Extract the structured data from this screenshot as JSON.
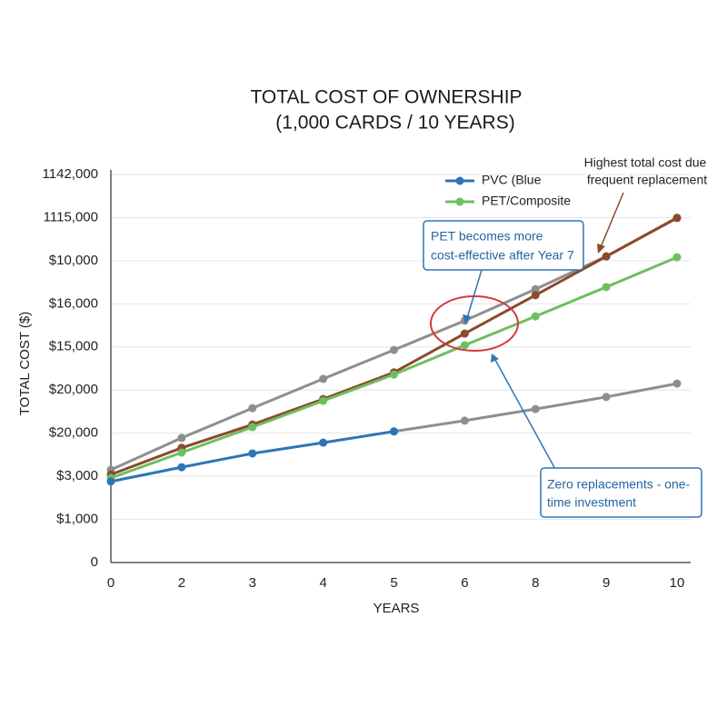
{
  "chart_data": {
    "type": "line",
    "title": [
      "TOTAL COST OF OWNERSHIP",
      "(1,000 CARDS / 10 YEARS)"
    ],
    "x_label": "YEARS",
    "y_label": "TOTAL COST ($)",
    "categories": [
      "0",
      "2",
      "3",
      "4",
      "5",
      "6",
      "8",
      "9",
      "10"
    ],
    "ylim": [
      0,
      9
    ],
    "yticks": [
      0,
      {
        "value": 1,
        "label": "$1,000"
      },
      {
        "value": 2,
        "label": "$3,000"
      },
      {
        "value": 3,
        "label": "$20,000"
      },
      {
        "value": 4,
        "label": "$20,000"
      },
      {
        "value": 5,
        "label": "$15,000"
      },
      {
        "value": 6,
        "label": "$16,000"
      },
      {
        "value": 7,
        "label": "$10,000"
      },
      {
        "value": 8,
        "label": "1115,000"
      },
      {
        "value": 9,
        "label": "1142,000"
      }
    ],
    "grid": true,
    "series": [
      {
        "color": "#8e8e8e",
        "values": [
          2.15,
          2.89,
          3.58,
          4.26,
          4.93,
          5.61,
          6.34,
          7.1,
          8.0
        ]
      },
      {
        "color": "#8e8e8e",
        "values": [
          null,
          null,
          null,
          null,
          3.04,
          3.29,
          3.56,
          3.84,
          4.15
        ]
      },
      {
        "color": "#8b4a2b",
        "values": [
          2.04,
          2.66,
          3.2,
          3.79,
          4.41,
          5.31,
          6.2,
          7.1,
          7.99
        ]
      },
      {
        "name": "PET/Composite",
        "color": "#6dbf5f",
        "values": [
          1.96,
          2.55,
          3.14,
          3.75,
          4.36,
          5.04,
          5.71,
          6.39,
          7.08
        ]
      },
      {
        "name": "PVC (Blue",
        "color": "#2e75b6",
        "values": [
          1.88,
          2.21,
          2.53,
          2.78,
          3.04,
          null,
          null,
          null,
          null
        ]
      }
    ],
    "annotations": [
      {
        "lines": [
          "Highest total cost due",
          "frequent replacement"
        ]
      },
      {
        "lines": [
          "PET becomes more",
          "cost-effective after Year 7"
        ]
      },
      {
        "lines": [
          "Zero replacements - one-",
          "time investment"
        ]
      }
    ]
  }
}
